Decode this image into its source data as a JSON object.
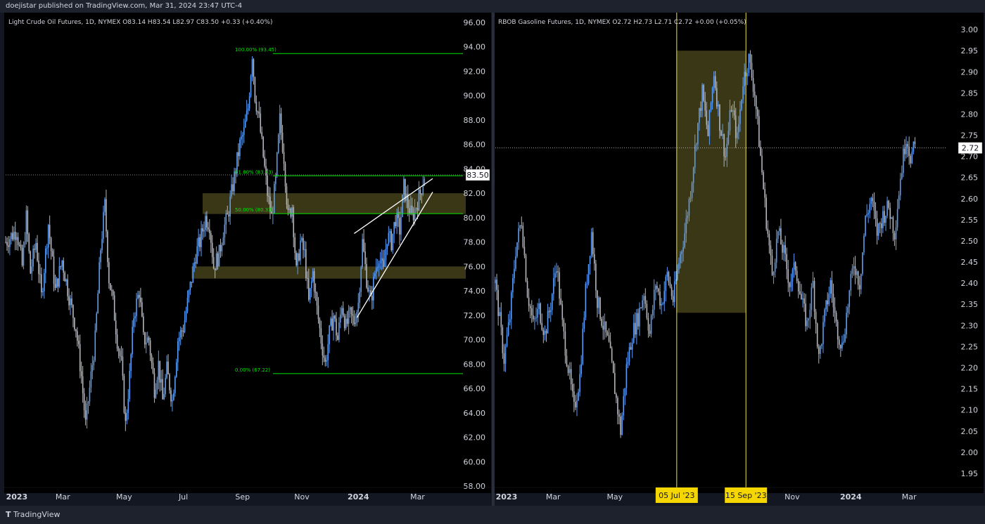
{
  "publisher": "doejistar published on TradingView.com, Mar 31, 2024 23:47 UTC-4",
  "footer": "TradingView",
  "footer_icon": "tradingview-logo-icon",
  "colors": {
    "bg": "#131722",
    "panel": "#000000",
    "candle_up": "#5b9cf6",
    "candle_down": "#b2b5be",
    "fib": "#00e600",
    "zone": "#4d4a1f",
    "vline": "#f0e442",
    "label_bg": "#f5d600"
  },
  "chart_data": [
    {
      "type": "candlestick",
      "title": "Light Crude Oil Futures, 1D, NYMEX  O83.14  H83.54  L82.97  C83.50  +0.33 (+0.40%)",
      "ylim": [
        58,
        96.8
      ],
      "y_ticks": [
        "96.00",
        "94.00",
        "92.00",
        "90.00",
        "88.00",
        "86.00",
        "84.00",
        "82.00",
        "80.00",
        "78.00",
        "76.00",
        "74.00",
        "72.00",
        "70.00",
        "68.00",
        "66.00",
        "64.00",
        "62.00",
        "60.00",
        "58.00"
      ],
      "x_ticks": [
        {
          "label": "2023",
          "t": 0.3
        },
        {
          "label": "Mar",
          "t": 41.5
        },
        {
          "label": "May",
          "t": 86
        },
        {
          "label": "Jul",
          "t": 129
        },
        {
          "label": "Sep",
          "t": 172
        },
        {
          "label": "Nov",
          "t": 215
        },
        {
          "label": "2024",
          "t": 256
        },
        {
          "label": "Mar",
          "t": 299
        }
      ],
      "t_range": [
        0,
        334
      ],
      "last_price": 83.5,
      "last_label": "83.50",
      "path": [
        [
          0,
          78
        ],
        [
          8,
          79
        ],
        [
          12,
          76
        ],
        [
          15,
          80
        ],
        [
          18,
          75.5
        ],
        [
          22,
          78
        ],
        [
          26,
          73.5
        ],
        [
          31,
          79.5
        ],
        [
          36,
          74
        ],
        [
          41,
          76.5
        ],
        [
          47,
          73
        ],
        [
          51,
          71
        ],
        [
          55,
          67
        ],
        [
          58,
          63
        ],
        [
          61,
          66
        ],
        [
          65,
          70
        ],
        [
          69,
          77.5
        ],
        [
          72,
          81
        ],
        [
          75,
          75
        ],
        [
          78,
          73
        ],
        [
          81,
          70
        ],
        [
          84,
          68
        ],
        [
          87,
          63
        ],
        [
          90,
          67
        ],
        [
          93,
          72
        ],
        [
          97,
          74
        ],
        [
          100,
          70
        ],
        [
          104,
          70
        ],
        [
          108,
          66
        ],
        [
          111,
          68
        ],
        [
          114,
          65
        ],
        [
          117,
          67.5
        ],
        [
          121,
          65
        ],
        [
          125,
          70
        ],
        [
          129,
          71
        ],
        [
          132,
          73
        ],
        [
          135,
          75
        ],
        [
          138,
          77
        ],
        [
          141,
          78
        ],
        [
          145,
          80
        ],
        [
          148,
          79.5
        ],
        [
          151,
          76
        ],
        [
          155,
          77
        ],
        [
          158,
          79
        ],
        [
          161,
          80
        ],
        [
          164,
          82
        ],
        [
          167,
          84
        ],
        [
          170,
          86
        ],
        [
          173,
          87
        ],
        [
          176,
          89
        ],
        [
          179,
          93.5
        ],
        [
          181,
          90
        ],
        [
          184,
          88
        ],
        [
          187,
          85
        ],
        [
          190,
          82
        ],
        [
          193,
          80
        ],
        [
          196,
          83
        ],
        [
          199,
          88
        ],
        [
          202,
          85
        ],
        [
          205,
          80
        ],
        [
          208,
          81
        ],
        [
          211,
          75.5
        ],
        [
          214,
          78
        ],
        [
          217,
          77
        ],
        [
          220,
          73
        ],
        [
          223,
          75.5
        ],
        [
          226,
          72.5
        ],
        [
          229,
          70
        ],
        [
          232,
          68
        ],
        [
          235,
          70.5
        ],
        [
          238,
          72
        ],
        [
          241,
          70
        ],
        [
          244,
          73
        ],
        [
          247,
          71
        ],
        [
          250,
          72
        ],
        [
          253,
          71.5
        ],
        [
          256,
          73
        ],
        [
          259,
          78
        ],
        [
          262,
          75
        ],
        [
          265,
          73
        ],
        [
          268,
          75.5
        ],
        [
          271,
          77
        ],
        [
          274,
          75.5
        ],
        [
          277,
          78.5
        ],
        [
          280,
          78
        ],
        [
          283,
          80
        ],
        [
          286,
          79
        ],
        [
          289,
          82.5
        ],
        [
          292,
          81
        ],
        [
          295,
          80
        ],
        [
          298,
          81
        ],
        [
          301,
          82
        ],
        [
          304,
          83.5
        ]
      ],
      "fib_levels": [
        {
          "label": "100.00% (93.45)",
          "value": 93.45
        },
        {
          "label": "61.80% (83.43)",
          "value": 83.43
        },
        {
          "label": "50.00% (80.33)",
          "value": 80.33
        },
        {
          "label": "0.00% (67.22)",
          "value": 67.22
        }
      ],
      "zones": [
        {
          "t0": 143,
          "t1": 334,
          "low": 80.3,
          "high": 82
        },
        {
          "t0": 135,
          "t1": 334,
          "low": 75,
          "high": 76
        }
      ],
      "wedge_lines": [
        {
          "t0": 253,
          "v0": 78.7,
          "t1": 310,
          "v1": 83.2
        },
        {
          "t0": 255,
          "v0": 71.8,
          "t1": 310,
          "v1": 82.1
        }
      ]
    },
    {
      "type": "candlestick",
      "title": "RBOB Gasoline Futures, 1D, NYMEX  O2.72  H2.73  L2.71  C2.72  +0.00 (+0.05%)",
      "ylim": [
        1.92,
        3.04
      ],
      "y_ticks": [
        "3.00",
        "2.95",
        "2.90",
        "2.85",
        "2.80",
        "2.75",
        "2.70",
        "2.65",
        "2.60",
        "2.55",
        "2.50",
        "2.45",
        "2.40",
        "2.35",
        "2.30",
        "2.25",
        "2.20",
        "2.15",
        "2.10",
        "2.05",
        "2.00",
        "1.95"
      ],
      "x_ticks": [
        {
          "label": "2023",
          "t": 0.3
        },
        {
          "label": "Mar",
          "t": 39.7
        },
        {
          "label": "May",
          "t": 82
        },
        {
          "label": "Nov",
          "t": 203.7
        },
        {
          "label": "2024",
          "t": 244
        },
        {
          "label": "Mar",
          "t": 284
        }
      ],
      "t_range": [
        0,
        310
      ],
      "last_price": 2.72,
      "last_label": "2.72",
      "vlines": [
        {
          "label": "05 Jul '23",
          "t": 124.5
        },
        {
          "label": "15 Sep '23",
          "t": 172
        }
      ],
      "zones": [
        {
          "t0": 124.5,
          "t1": 172,
          "low": 2.33,
          "high": 2.95
        }
      ],
      "path": [
        [
          0,
          2.4
        ],
        [
          6,
          2.22
        ],
        [
          10,
          2.32
        ],
        [
          14,
          2.48
        ],
        [
          18,
          2.55
        ],
        [
          22,
          2.38
        ],
        [
          26,
          2.3
        ],
        [
          30,
          2.34
        ],
        [
          34,
          2.28
        ],
        [
          38,
          2.35
        ],
        [
          42,
          2.45
        ],
        [
          46,
          2.3
        ],
        [
          50,
          2.2
        ],
        [
          54,
          2.1
        ],
        [
          58,
          2.18
        ],
        [
          62,
          2.38
        ],
        [
          66,
          2.52
        ],
        [
          70,
          2.36
        ],
        [
          74,
          2.3
        ],
        [
          78,
          2.25
        ],
        [
          82,
          2.15
        ],
        [
          86,
          2.05
        ],
        [
          90,
          2.2
        ],
        [
          94,
          2.28
        ],
        [
          98,
          2.32
        ],
        [
          102,
          2.38
        ],
        [
          106,
          2.28
        ],
        [
          110,
          2.4
        ],
        [
          114,
          2.35
        ],
        [
          118,
          2.42
        ],
        [
          122,
          2.36
        ],
        [
          126,
          2.45
        ],
        [
          130,
          2.52
        ],
        [
          134,
          2.62
        ],
        [
          138,
          2.75
        ],
        [
          142,
          2.85
        ],
        [
          146,
          2.75
        ],
        [
          150,
          2.9
        ],
        [
          154,
          2.78
        ],
        [
          158,
          2.7
        ],
        [
          162,
          2.82
        ],
        [
          166,
          2.74
        ],
        [
          170,
          2.88
        ],
        [
          174,
          2.93
        ],
        [
          178,
          2.85
        ],
        [
          182,
          2.7
        ],
        [
          186,
          2.55
        ],
        [
          190,
          2.42
        ],
        [
          194,
          2.52
        ],
        [
          198,
          2.47
        ],
        [
          202,
          2.4
        ],
        [
          206,
          2.44
        ],
        [
          210,
          2.36
        ],
        [
          214,
          2.3
        ],
        [
          218,
          2.4
        ],
        [
          222,
          2.22
        ],
        [
          226,
          2.32
        ],
        [
          230,
          2.4
        ],
        [
          234,
          2.3
        ],
        [
          238,
          2.25
        ],
        [
          242,
          2.35
        ],
        [
          246,
          2.45
        ],
        [
          250,
          2.4
        ],
        [
          254,
          2.55
        ],
        [
          258,
          2.6
        ],
        [
          262,
          2.52
        ],
        [
          266,
          2.56
        ],
        [
          270,
          2.58
        ],
        [
          274,
          2.52
        ],
        [
          278,
          2.65
        ],
        [
          282,
          2.75
        ],
        [
          285,
          2.7
        ],
        [
          288,
          2.72
        ]
      ]
    }
  ]
}
